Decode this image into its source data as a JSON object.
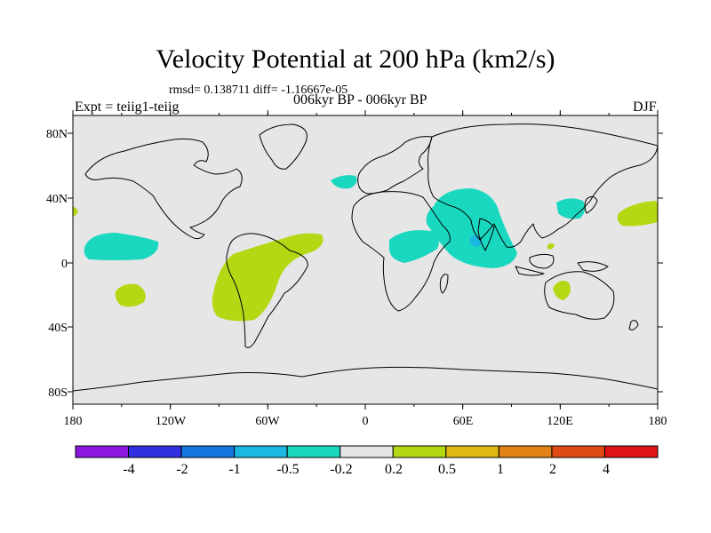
{
  "title": "Velocity Potential at 200 hPa (km2/s)",
  "stats_line": "rmsd= 0.138711 diff= -1.16667e-05",
  "period_line": "006kyr BP - 006kyr BP",
  "experiment_label": "Expt = teiig1-teiig",
  "season_label": "DJF",
  "map": {
    "projection": "cylindrical equidistant",
    "ocean_color": "#e6e6e6",
    "coastline_color": "#000000",
    "lon_ticks": [
      "180",
      "120W",
      "60W",
      "0",
      "60E",
      "120E",
      "180"
    ],
    "lat_ticks": [
      "80N",
      "40N",
      "0",
      "40S",
      "80S"
    ]
  },
  "anomaly_regions": [
    {
      "name": "North Atlantic (west of Europe)",
      "level": "-0.5 to -0.2",
      "color": "#1ad8c0"
    },
    {
      "name": "Arabian Sea / Indian Ocean",
      "level": "-0.5 to -0.2",
      "color": "#1ad8c0"
    },
    {
      "name": "Central Africa",
      "level": "-0.5 to -0.2",
      "color": "#1ad8c0"
    },
    {
      "name": "Arabian Sea core",
      "level": "-1 to -0.5",
      "color": "#1ab8e0"
    },
    {
      "name": "Korea / Japan",
      "level": "-0.5 to -0.2",
      "color": "#1ad8c0"
    },
    {
      "name": "Eastern Tropical Pacific",
      "level": "-0.5 to -0.2",
      "color": "#1ad8c0"
    },
    {
      "name": "South America / Tropical Atlantic",
      "level": "0.2 to 0.5",
      "color": "#b4d814"
    },
    {
      "name": "South Pacific",
      "level": "0.2 to 0.5",
      "color": "#b4d814"
    },
    {
      "name": "Northwest Australia",
      "level": "0.2 to 0.5",
      "color": "#b4d814"
    },
    {
      "name": "North Pacific (dateline)",
      "level": "0.2 to 0.5",
      "color": "#b4d814"
    },
    {
      "name": "Philippine Sea spot",
      "level": "0.2 to 0.5",
      "color": "#b4d814"
    },
    {
      "name": "North Pacific far west edge",
      "level": "0.2 to 0.5",
      "color": "#b4d814"
    }
  ],
  "colorbar": {
    "colors": [
      "#8a16e0",
      "#3030e0",
      "#1478e0",
      "#1ab8e0",
      "#1ad8c0",
      "#e6e6e6",
      "#b4d814",
      "#e0b814",
      "#e08214",
      "#e04a14",
      "#e01414"
    ],
    "labels": [
      "-4",
      "-2",
      "-1",
      "-0.5",
      "-0.2",
      "0.2",
      "0.5",
      "1",
      "2",
      "4"
    ]
  }
}
